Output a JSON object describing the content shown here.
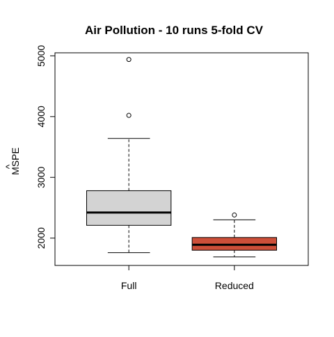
{
  "chart_data": {
    "type": "box",
    "title": "Air Pollution - 10 runs 5-fold CV",
    "xlabel": "",
    "ylabel": "MSPE",
    "ylabel_accent": "^",
    "ylim": [
      1550,
      5050
    ],
    "yticks": [
      "2000",
      "3000",
      "4000",
      "5000"
    ],
    "grid": false,
    "categories": [
      "Full",
      "Reduced"
    ],
    "series": [
      {
        "category": "Full",
        "color": "#d3d3d3",
        "whisker_low": 1760,
        "q1": 2210,
        "median": 2420,
        "q3": 2780,
        "whisker_high": 3640,
        "outliers": [
          4020,
          4940
        ]
      },
      {
        "category": "Reduced",
        "color": "#cd4f39",
        "whisker_low": 1690,
        "q1": 1800,
        "median": 1890,
        "q3": 2010,
        "whisker_high": 2300,
        "outliers": [
          2380
        ]
      }
    ]
  }
}
